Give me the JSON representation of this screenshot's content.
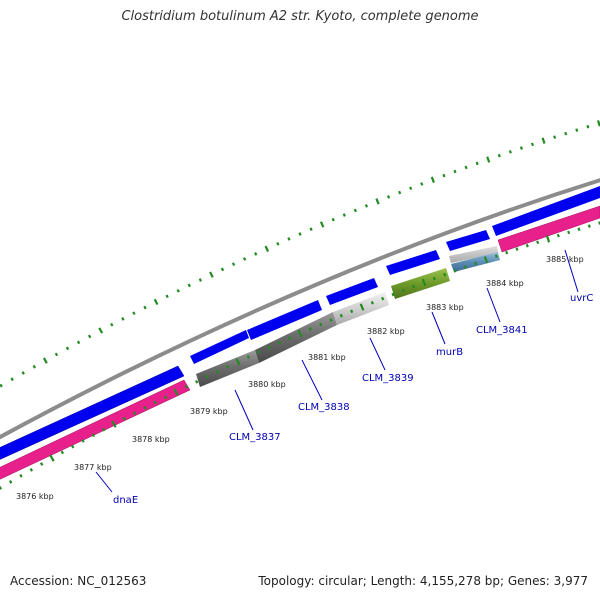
{
  "title": "Clostridium botulinum A2 str. Kyoto, complete genome",
  "footer": {
    "accession": "Accession: NC_012563",
    "summary": "Topology: circular; Length: 4,155,278 bp; Genes: 3,977"
  },
  "colors": {
    "backbone": "#8c8c8c",
    "forward_cds": "#0000f0",
    "reverse_cds": "#e8208c",
    "tick": "#228b22",
    "gene_label": "#0000b0",
    "leader_line": "#0000c0"
  },
  "tick_labels": [
    "3876 kbp",
    "3877 kbp",
    "3878 kbp",
    "3879 kbp",
    "3880 kbp",
    "3881 kbp",
    "3882 kbp",
    "3883 kbp",
    "3884 kbp",
    "3885 kbp"
  ],
  "gene_labels": [
    "dnaE",
    "CLM_3837",
    "CLM_3838",
    "CLM_3839",
    "murB",
    "CLM_3841",
    "uvrC"
  ]
}
